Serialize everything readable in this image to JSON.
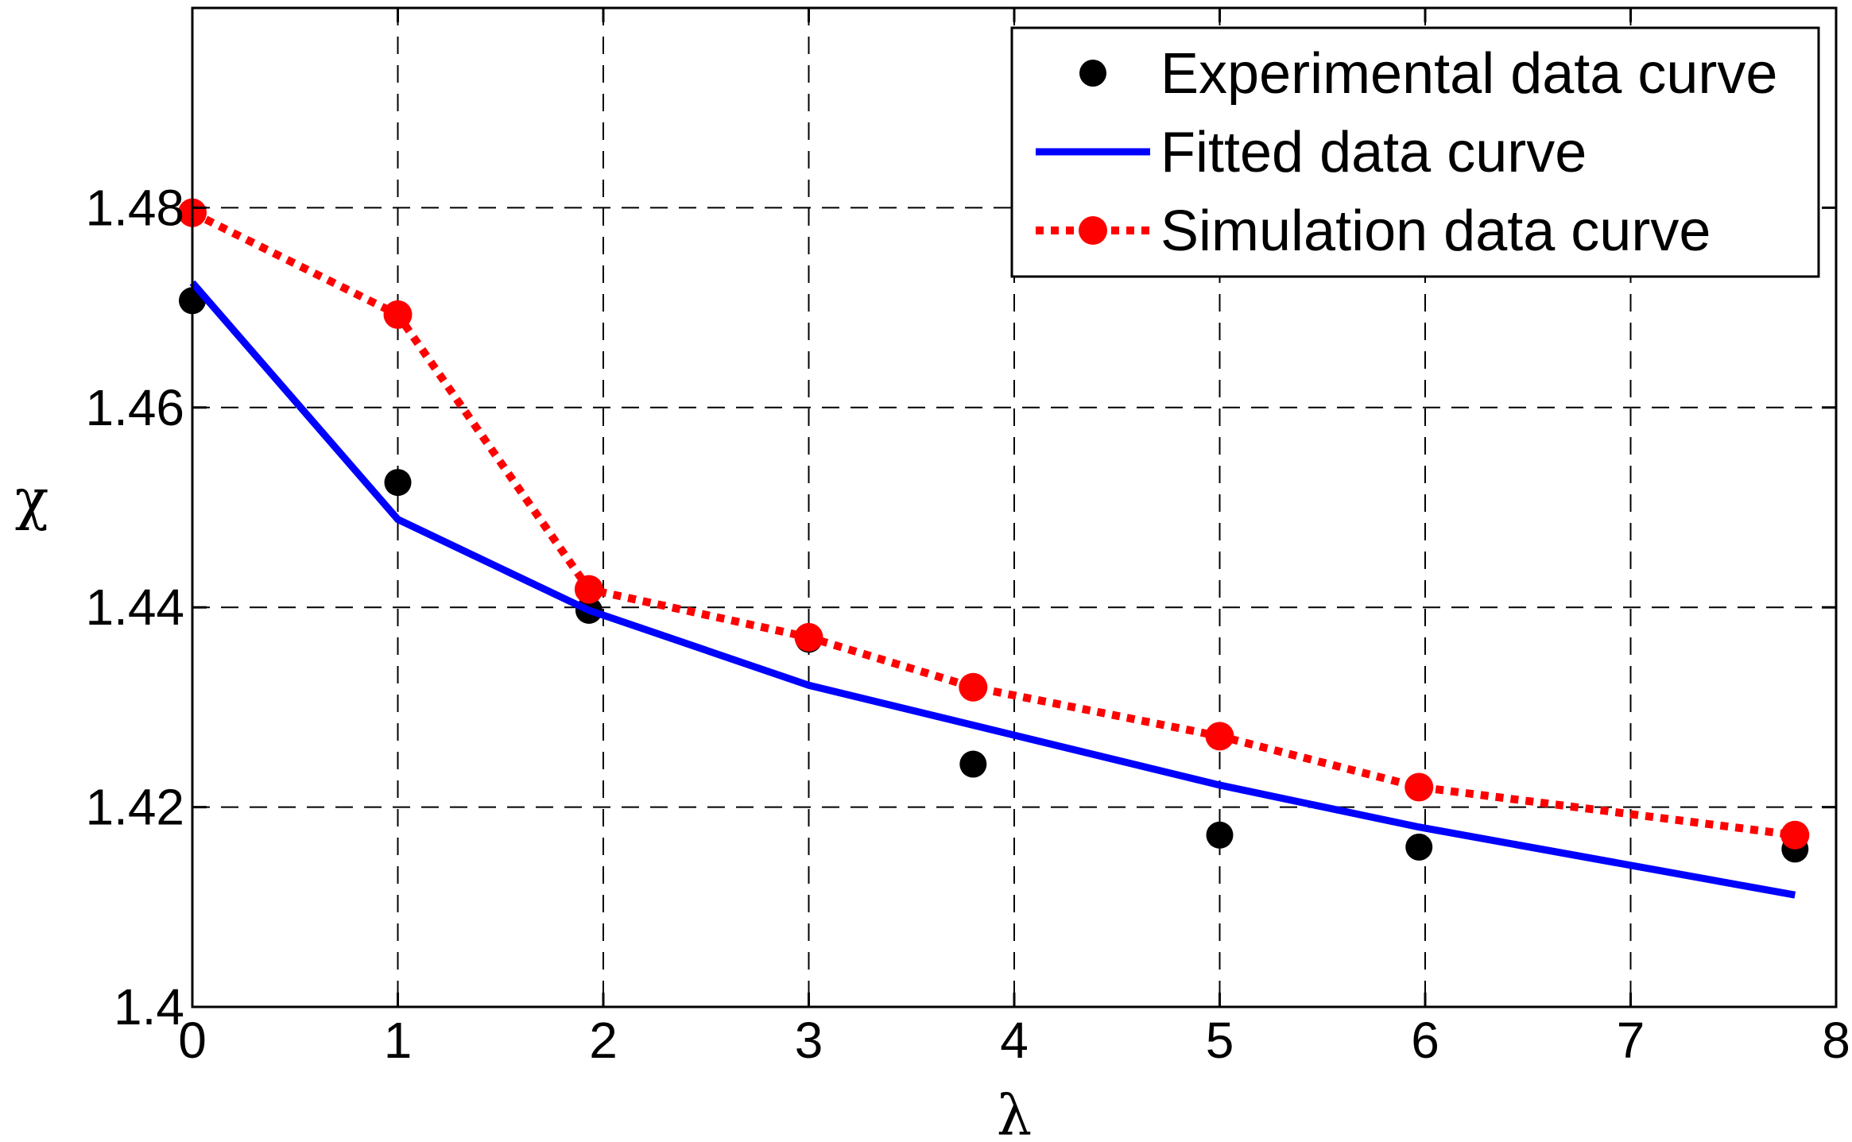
{
  "chart_data": {
    "type": "line",
    "title": "",
    "xlabel": "λ",
    "ylabel": "χ",
    "xlim": [
      0,
      8
    ],
    "ylim": [
      1.4,
      1.5
    ],
    "grid": true,
    "legend_position": "top-right",
    "x_ticks": [
      0,
      1,
      2,
      3,
      4,
      5,
      6,
      7,
      8
    ],
    "x_tick_labels": [
      "0",
      "1",
      "2",
      "3",
      "4",
      "5",
      "6",
      "7",
      "8"
    ],
    "y_ticks": [
      1.4,
      1.42,
      1.44,
      1.46,
      1.48
    ],
    "y_tick_labels": [
      "1.4",
      "1.42",
      "1.44",
      "1.46",
      "1.48"
    ],
    "series": [
      {
        "name": "Experimental data curve",
        "style": "markers",
        "color": "#000000",
        "x": [
          0,
          1,
          1.93,
          3,
          3.8,
          5,
          5.97,
          7.8
        ],
        "y": [
          1.4707,
          1.4525,
          1.4397,
          1.4368,
          1.4243,
          1.4172,
          1.416,
          1.4158
        ]
      },
      {
        "name": "Fitted data curve",
        "style": "solid-line",
        "color": "#0000ff",
        "x": [
          0,
          1,
          1.93,
          3,
          3.8,
          5,
          5.97,
          7.8
        ],
        "y": [
          1.4725,
          1.4488,
          1.4397,
          1.4322,
          1.4282,
          1.4222,
          1.418,
          1.4112
        ]
      },
      {
        "name": "Simulation data curve",
        "style": "dotted-line-markers",
        "color": "#ff0000",
        "x": [
          0,
          1,
          1.93,
          3,
          3.8,
          5,
          5.97,
          7.8
        ],
        "y": [
          1.4795,
          1.4693,
          1.4418,
          1.437,
          1.432,
          1.4271,
          1.422,
          1.4172
        ]
      }
    ]
  }
}
